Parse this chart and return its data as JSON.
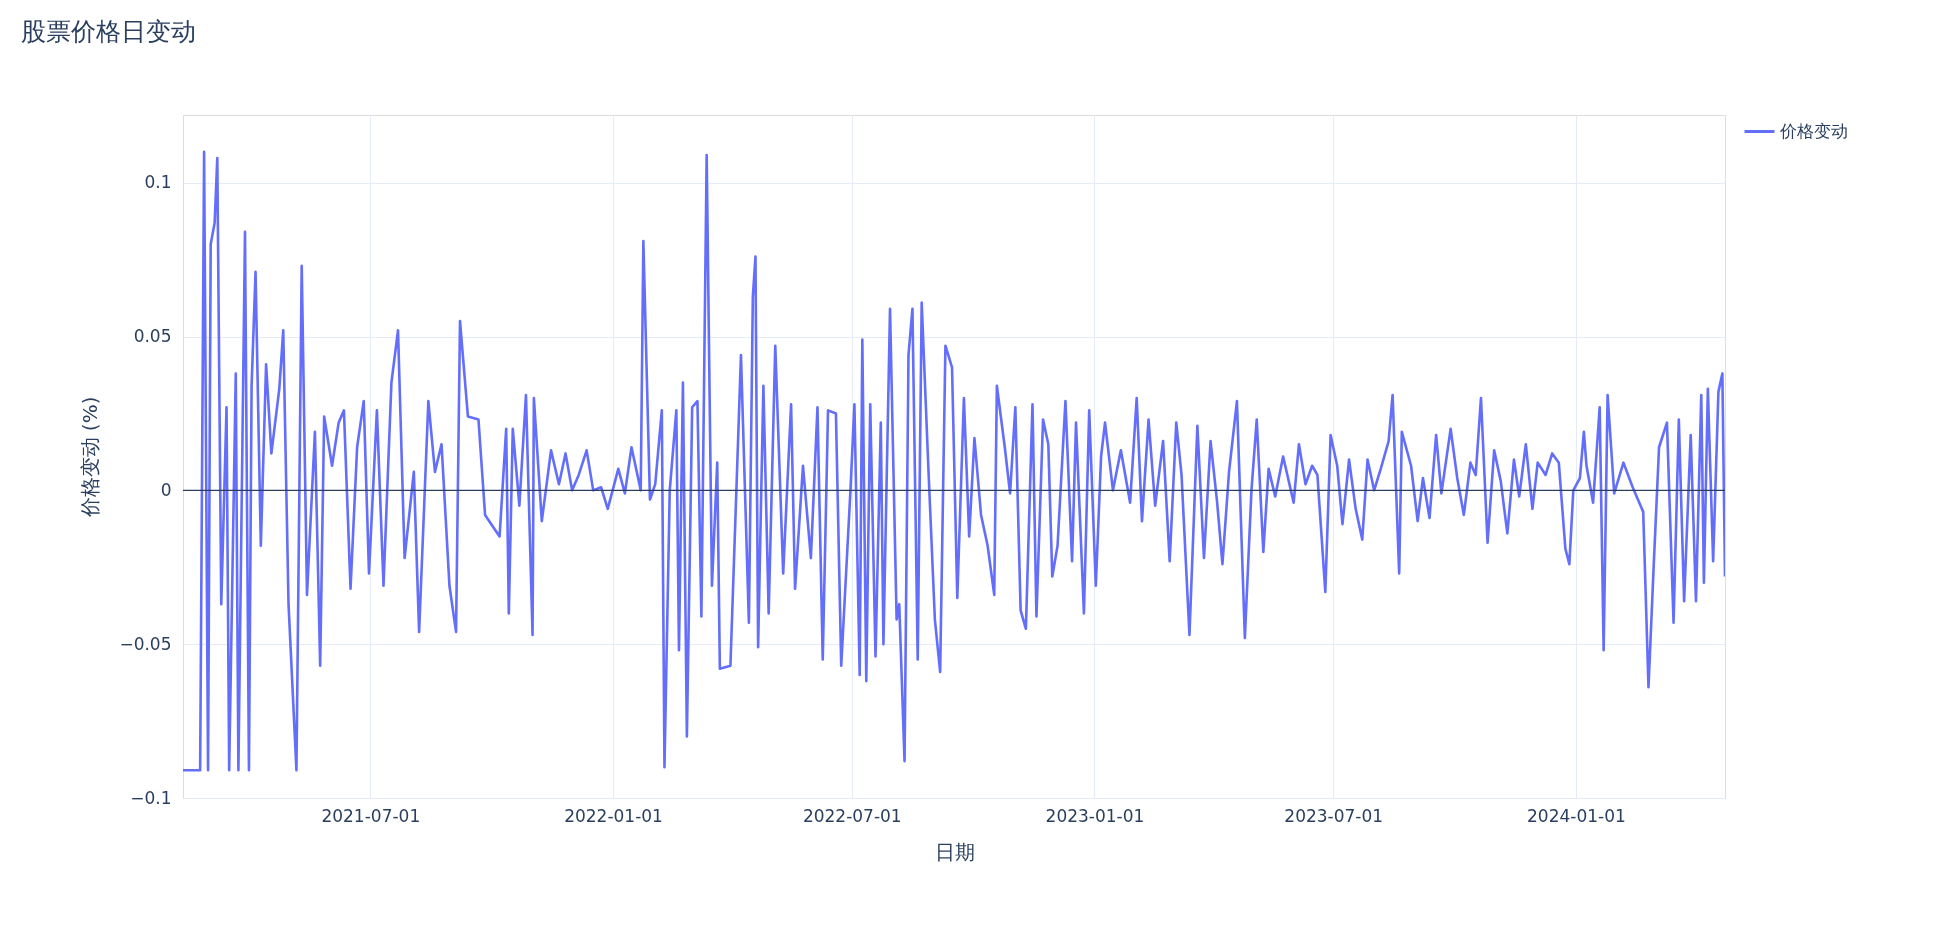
{
  "chart_data": {
    "type": "line",
    "title": "股票价格日变动",
    "xlabel": "日期",
    "ylabel": "价格变动 (%)",
    "legend": "top right",
    "grid": true,
    "line_style": "solid",
    "xlim": [
      "2021-02-09",
      "2024-04-23"
    ],
    "xticks": [
      "2021-07-01",
      "2022-01-01",
      "2022-07-01",
      "2023-01-01",
      "2023-07-01",
      "2024-01-01"
    ],
    "ylim": [
      -0.1,
      0.122
    ],
    "yticks": [
      {
        "value": -0.1,
        "label": "−0.1"
      },
      {
        "value": -0.05,
        "label": "−0.05"
      },
      0,
      0.05,
      0.1
    ],
    "ref_lines": [
      {
        "axis": "y",
        "value": 0,
        "color": "#2a3f5f"
      }
    ],
    "x": [
      "2021-02-09",
      "2021-02-22",
      "2021-02-25",
      "2021-02-28",
      "2021-03-02",
      "2021-03-05",
      "2021-03-07",
      "2021-03-10",
      "2021-03-14",
      "2021-03-16",
      "2021-03-21",
      "2021-03-23",
      "2021-03-28",
      "2021-03-31",
      "2021-04-02",
      "2021-04-05",
      "2021-04-09",
      "2021-04-13",
      "2021-04-17",
      "2021-04-23",
      "2021-04-26",
      "2021-04-30",
      "2021-05-06",
      "2021-05-10",
      "2021-05-14",
      "2021-05-20",
      "2021-05-24",
      "2021-05-27",
      "2021-06-02",
      "2021-06-07",
      "2021-06-11",
      "2021-06-16",
      "2021-06-21",
      "2021-06-26",
      "2021-06-30",
      "2021-07-06",
      "2021-07-11",
      "2021-07-17",
      "2021-07-22",
      "2021-07-27",
      "2021-08-03",
      "2021-08-07",
      "2021-08-14",
      "2021-08-19",
      "2021-08-24",
      "2021-08-30",
      "2021-09-04",
      "2021-09-07",
      "2021-09-13",
      "2021-09-21",
      "2021-09-26",
      "2021-10-07",
      "2021-10-12",
      "2021-10-14",
      "2021-10-17",
      "2021-10-22",
      "2021-10-27",
      "2021-11-01",
      "2021-11-02",
      "2021-11-08",
      "2021-11-15",
      "2021-11-21",
      "2021-11-26",
      "2021-12-01",
      "2021-12-06",
      "2021-12-12",
      "2021-12-17",
      "2021-12-23",
      "2021-12-28",
      "2022-01-05",
      "2022-01-10",
      "2022-01-15",
      "2022-01-22",
      "2022-01-24",
      "2022-01-29",
      "2022-02-02",
      "2022-02-07",
      "2022-02-09",
      "2022-02-13",
      "2022-02-18",
      "2022-02-20",
      "2022-02-23",
      "2022-02-26",
      "2022-03-02",
      "2022-03-06",
      "2022-03-09",
      "2022-03-13",
      "2022-03-17",
      "2022-03-21",
      "2022-03-23",
      "2022-03-31",
      "2022-04-08",
      "2022-04-14",
      "2022-04-17",
      "2022-04-19",
      "2022-04-21",
      "2022-04-25",
      "2022-04-29",
      "2022-05-04",
      "2022-05-10",
      "2022-05-16",
      "2022-05-19",
      "2022-05-25",
      "2022-05-31",
      "2022-06-05",
      "2022-06-09",
      "2022-06-13",
      "2022-06-19",
      "2022-06-23",
      "2022-06-30",
      "2022-07-03",
      "2022-07-07",
      "2022-07-09",
      "2022-07-12",
      "2022-07-15",
      "2022-07-19",
      "2022-07-23",
      "2022-07-25",
      "2022-07-30",
      "2022-08-04",
      "2022-08-06",
      "2022-08-10",
      "2022-08-13",
      "2022-08-16",
      "2022-08-20",
      "2022-08-23",
      "2022-08-28",
      "2022-09-02",
      "2022-09-06",
      "2022-09-10",
      "2022-09-15",
      "2022-09-19",
      "2022-09-24",
      "2022-09-28",
      "2022-10-02",
      "2022-10-07",
      "2022-10-12",
      "2022-10-17",
      "2022-10-19",
      "2022-10-25",
      "2022-10-29",
      "2022-11-02",
      "2022-11-06",
      "2022-11-10",
      "2022-11-15",
      "2022-11-18",
      "2022-11-23",
      "2022-11-27",
      "2022-11-30",
      "2022-12-04",
      "2022-12-10",
      "2022-12-15",
      "2022-12-18",
      "2022-12-24",
      "2022-12-28",
      "2023-01-02",
      "2023-01-06",
      "2023-01-09",
      "2023-01-15",
      "2023-01-21",
      "2023-01-28",
      "2023-02-02",
      "2023-02-06",
      "2023-02-11",
      "2023-02-16",
      "2023-02-22",
      "2023-02-27",
      "2023-03-04",
      "2023-03-08",
      "2023-03-14",
      "2023-03-20",
      "2023-03-25",
      "2023-03-30",
      "2023-04-04",
      "2023-04-08",
      "2023-04-13",
      "2023-04-19",
      "2023-04-25",
      "2023-04-30",
      "2023-05-04",
      "2023-05-09",
      "2023-05-13",
      "2023-05-18",
      "2023-05-24",
      "2023-06-01",
      "2023-06-05",
      "2023-06-10",
      "2023-06-15",
      "2023-06-19",
      "2023-06-25",
      "2023-06-29",
      "2023-07-04",
      "2023-07-08",
      "2023-07-13",
      "2023-07-18",
      "2023-07-23",
      "2023-07-27",
      "2023-08-01",
      "2023-08-06",
      "2023-08-12",
      "2023-08-15",
      "2023-08-20",
      "2023-08-22",
      "2023-08-29",
      "2023-09-03",
      "2023-09-07",
      "2023-09-12",
      "2023-09-17",
      "2023-09-21",
      "2023-09-28",
      "2023-10-03",
      "2023-10-08",
      "2023-10-13",
      "2023-10-17",
      "2023-10-21",
      "2023-10-26",
      "2023-10-31",
      "2023-11-05",
      "2023-11-10",
      "2023-11-15",
      "2023-11-19",
      "2023-11-24",
      "2023-11-29",
      "2023-12-03",
      "2023-12-09",
      "2023-12-14",
      "2023-12-19",
      "2023-12-24",
      "2023-12-27",
      "2023-12-30",
      "2024-01-04",
      "2024-01-07",
      "2024-01-09",
      "2024-01-14",
      "2024-01-19",
      "2024-01-22",
      "2024-01-25",
      "2024-01-30",
      "2024-02-06",
      "2024-02-13",
      "2024-02-21",
      "2024-02-25",
      "2024-02-29",
      "2024-03-04",
      "2024-03-10",
      "2024-03-15",
      "2024-03-19",
      "2024-03-23",
      "2024-03-28",
      "2024-04-01",
      "2024-04-05",
      "2024-04-07",
      "2024-04-10",
      "2024-04-14",
      "2024-04-18",
      "2024-04-21",
      "2024-04-23"
    ],
    "series": [
      {
        "name": "价格变动",
        "color": "#636efa",
        "values": [
          -0.091,
          -0.091,
          0.11,
          -0.091,
          0.08,
          0.087,
          0.108,
          -0.037,
          0.027,
          -0.091,
          0.038,
          -0.091,
          0.084,
          -0.091,
          0.034,
          0.071,
          -0.018,
          0.041,
          0.012,
          0.033,
          0.052,
          -0.037,
          -0.091,
          0.073,
          -0.034,
          0.019,
          -0.057,
          0.024,
          0.008,
          0.022,
          0.026,
          -0.032,
          0.014,
          0.029,
          -0.027,
          0.026,
          -0.031,
          0.035,
          0.052,
          -0.022,
          0.006,
          -0.046,
          0.029,
          0.006,
          0.015,
          -0.031,
          -0.046,
          0.055,
          0.024,
          0.023,
          -0.008,
          -0.015,
          0.02,
          -0.04,
          0.02,
          -0.005,
          0.031,
          -0.047,
          0.03,
          -0.01,
          0.013,
          0.002,
          0.012,
          0.0,
          0.005,
          0.013,
          0.0,
          0.001,
          -0.006,
          0.007,
          -0.001,
          0.014,
          0.0,
          0.081,
          -0.003,
          0.002,
          0.026,
          -0.09,
          0.0,
          0.026,
          -0.052,
          0.035,
          -0.08,
          0.027,
          0.029,
          -0.041,
          0.109,
          -0.031,
          0.009,
          -0.058,
          -0.057,
          0.044,
          -0.043,
          0.063,
          0.076,
          -0.051,
          0.034,
          -0.04,
          0.047,
          -0.027,
          0.028,
          -0.032,
          0.008,
          -0.022,
          0.027,
          -0.055,
          0.026,
          0.025,
          -0.057,
          0.0,
          0.028,
          -0.06,
          0.049,
          -0.062,
          0.028,
          -0.054,
          0.022,
          -0.05,
          0.059,
          -0.042,
          -0.037,
          -0.088,
          0.044,
          0.059,
          -0.055,
          0.061,
          0.008,
          -0.042,
          -0.059,
          0.047,
          0.04,
          -0.035,
          0.03,
          -0.015,
          0.017,
          -0.008,
          -0.018,
          -0.034,
          0.034,
          0.014,
          -0.001,
          0.027,
          -0.039,
          -0.045,
          0.028,
          -0.041,
          0.023,
          0.015,
          -0.028,
          -0.018,
          0.029,
          -0.023,
          0.022,
          -0.04,
          0.026,
          -0.031,
          0.011,
          0.022,
          0.0,
          0.013,
          -0.004,
          0.03,
          -0.01,
          0.023,
          -0.005,
          0.016,
          -0.023,
          0.022,
          0.005,
          -0.047,
          0.021,
          -0.022,
          0.016,
          -0.004,
          -0.024,
          0.006,
          0.029,
          -0.048,
          0.0,
          0.023,
          -0.02,
          0.007,
          -0.002,
          0.011,
          -0.004,
          0.015,
          0.002,
          0.008,
          0.005,
          -0.033,
          0.018,
          0.008,
          -0.011,
          0.01,
          -0.006,
          -0.016,
          0.01,
          0.0,
          0.007,
          0.016,
          0.031,
          -0.027,
          0.019,
          0.008,
          -0.01,
          0.004,
          -0.009,
          0.018,
          -0.001,
          0.02,
          0.004,
          -0.008,
          0.009,
          0.005,
          0.03,
          -0.017,
          0.013,
          0.003,
          -0.014,
          0.01,
          -0.002,
          0.015,
          -0.006,
          0.009,
          0.005,
          0.012,
          0.009,
          -0.019,
          -0.024,
          0.0,
          0.004,
          0.019,
          0.008,
          -0.004,
          0.027,
          -0.052,
          0.031,
          -0.001,
          0.009,
          0.001,
          -0.007,
          -0.064,
          -0.024,
          0.014,
          0.022,
          -0.043,
          0.023,
          -0.036,
          0.018,
          -0.036,
          0.031,
          -0.03,
          0.033,
          -0.023,
          0.032,
          0.038,
          -0.028
        ]
      }
    ]
  }
}
